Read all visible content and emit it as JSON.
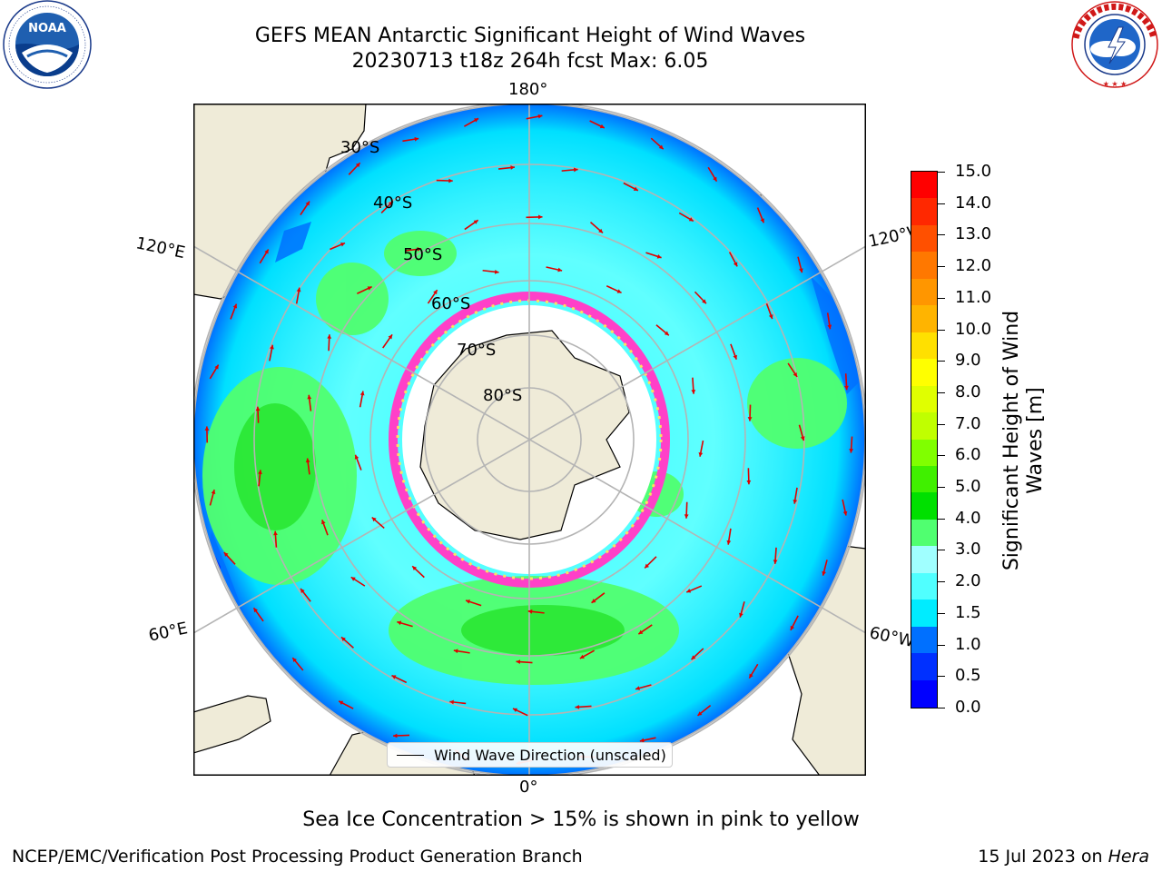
{
  "header": {
    "title_line1": "GEFS MEAN Antarctic Significant Height of Wind Waves",
    "title_line2": "20230713 t18z 264h fcst   Max: 6.05"
  },
  "logos": {
    "left": {
      "text": "NOAA",
      "ring_text": "NATIONAL OCEANIC AND ATMOSPHERIC ADMINISTRATION · U.S. DEPARTMENT OF COMMERCE"
    },
    "right": {
      "ring_text": "NATIONAL WEATHER SERVICE"
    }
  },
  "map": {
    "longitude_labels": {
      "top": "180°",
      "bottom": "0°",
      "upper_left": "120°E",
      "upper_right": "120°W",
      "lower_left": "60°E",
      "lower_right": "60°W"
    },
    "latitude_labels": [
      "30°S",
      "40°S",
      "50°S",
      "60°S",
      "70°S",
      "80°S"
    ],
    "colors": {
      "land": "#efebd8",
      "ice_free_ocean_bg": "#ffffff",
      "arrow": "#e00000",
      "grid": "#b4b4b4",
      "sea_ice_pink": "#ff40c8",
      "sea_ice_yellow": "#ffe060"
    }
  },
  "legend": {
    "label": "Wind Wave Direction (unscaled)"
  },
  "colorbar": {
    "title_line1": "Significant Height of Wind",
    "title_line2": "Waves [m]",
    "ticks": [
      "15.0",
      "14.0",
      "13.0",
      "12.0",
      "11.0",
      "10.0",
      "9.0",
      "8.0",
      "7.0",
      "6.0",
      "5.0",
      "4.0",
      "3.0",
      "2.0",
      "1.5",
      "1.0",
      "0.5",
      "0.0"
    ],
    "segment_colors_top_to_bottom": [
      "#ff0000",
      "#ff2800",
      "#ff5000",
      "#ff7800",
      "#ff9600",
      "#ffb400",
      "#ffe000",
      "#ffff00",
      "#e0ff00",
      "#c0ff00",
      "#80ff00",
      "#40f000",
      "#00e000",
      "#50ff70",
      "#a0ffff",
      "#50ffff",
      "#00ecff",
      "#0070ff",
      "#0030ff",
      "#0000ff"
    ]
  },
  "note": "Sea Ice Concentration > 15% is shown in pink to yellow",
  "footer": {
    "left": "NCEP/EMC/Verification Post Processing Product Generation Branch",
    "right_prefix": "15 Jul 2023 on ",
    "right_italic": "Hera"
  }
}
